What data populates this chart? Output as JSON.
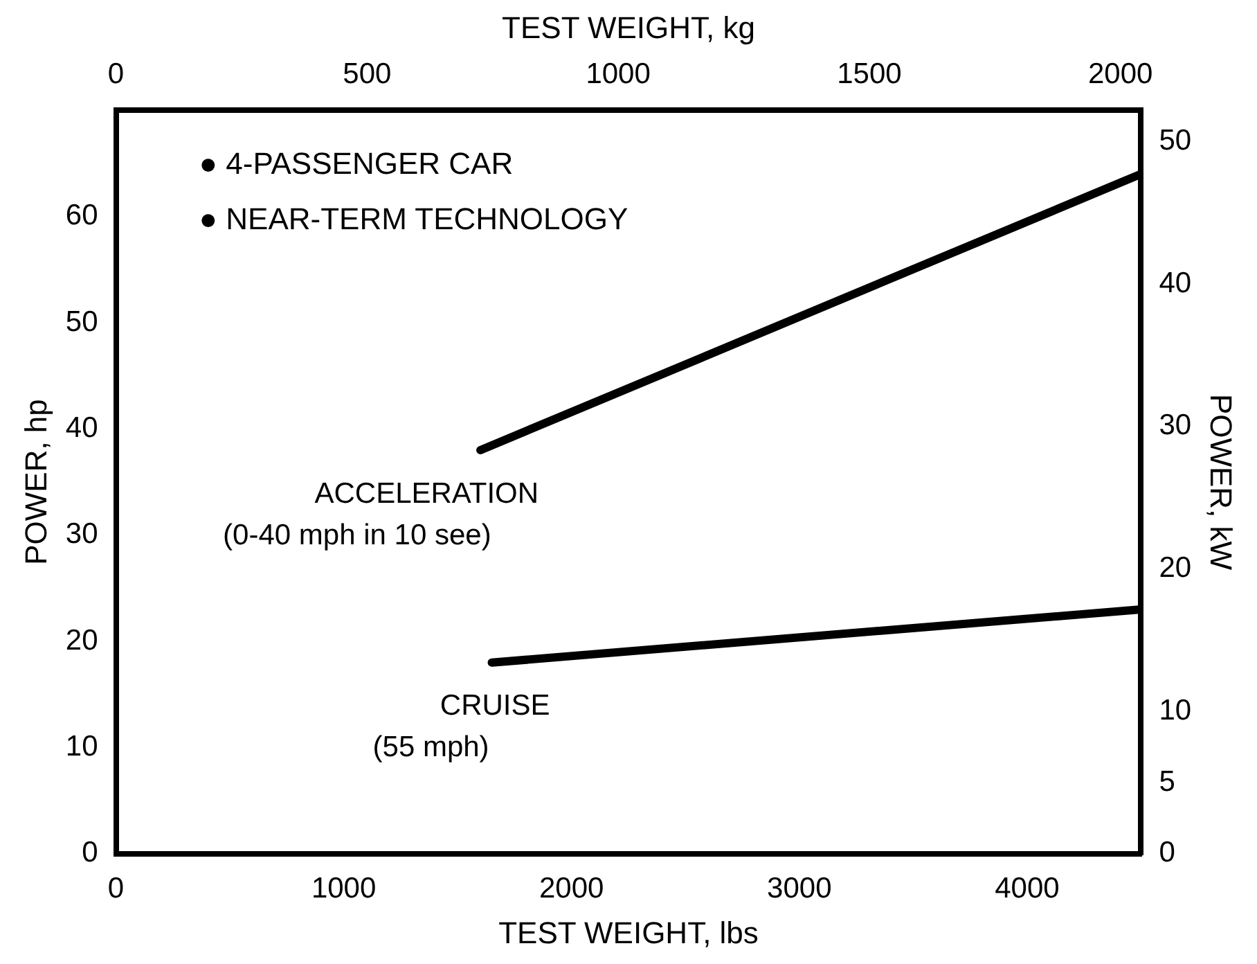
{
  "chart_data": {
    "type": "line",
    "xlabel": "TEST WEIGHT, lbs",
    "x2label": "TEST WEIGHT, kg",
    "ylabel": "POWER, hp",
    "y2label": "POWER, kW",
    "xlim": [
      0,
      4500
    ],
    "xticks": [
      0,
      1000,
      2000,
      3000,
      4000
    ],
    "x2lim": [
      0,
      2041
    ],
    "x2ticks": [
      0,
      500,
      1000,
      1500,
      2000
    ],
    "ylim": [
      0,
      70
    ],
    "yticks": [
      0,
      10,
      20,
      30,
      40,
      50,
      60
    ],
    "y2lim": [
      0,
      52.2
    ],
    "y2ticks": [
      0,
      5,
      10,
      20,
      30,
      40,
      50
    ],
    "series": [
      {
        "name": "ACCELERATION (0-40 mph in 10 see)",
        "color": "#000000",
        "x": [
          1600,
          4500
        ],
        "values": [
          38,
          64
        ]
      },
      {
        "name": "CRUISE (55 mph)",
        "color": "#000000",
        "x": [
          1650,
          4500
        ],
        "values": [
          18,
          23
        ]
      }
    ],
    "annotations": [
      "● 4-PASSENGER CAR",
      "● NEAR-TERM TECHNOLOGY"
    ],
    "grid": false,
    "legend": false,
    "marker": "none",
    "line_style": "solid"
  }
}
